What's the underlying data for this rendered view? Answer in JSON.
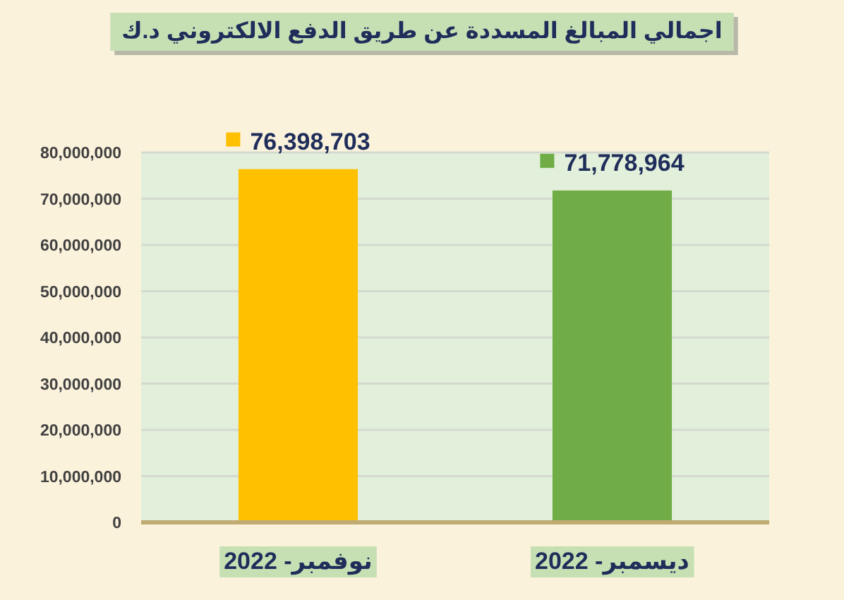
{
  "chart_data": {
    "type": "bar",
    "title": "اجمالي المبالغ المسددة عن طريق الدفع الالكتروني د.ك",
    "categories": [
      "نوفمبر- 2022",
      "ديسمبر- 2022"
    ],
    "values": [
      76398703,
      71778964
    ],
    "value_labels": [
      "76,398,703",
      "71,778,964"
    ],
    "colors": [
      "#ffc000",
      "#70ad47"
    ],
    "ylim": [
      0,
      80000000
    ],
    "yticks": [
      {
        "value": 0,
        "label": "0"
      },
      {
        "value": 10000000,
        "label": "10,000,000"
      },
      {
        "value": 20000000,
        "label": "20,000,000"
      },
      {
        "value": 30000000,
        "label": "30,000,000"
      },
      {
        "value": 40000000,
        "label": "40,000,000"
      },
      {
        "value": 50000000,
        "label": "50,000,000"
      },
      {
        "value": 60000000,
        "label": "60,000,000"
      },
      {
        "value": 70000000,
        "label": "70,000,000"
      },
      {
        "value": 80000000,
        "label": "80,000,000"
      }
    ],
    "grid": "y"
  }
}
